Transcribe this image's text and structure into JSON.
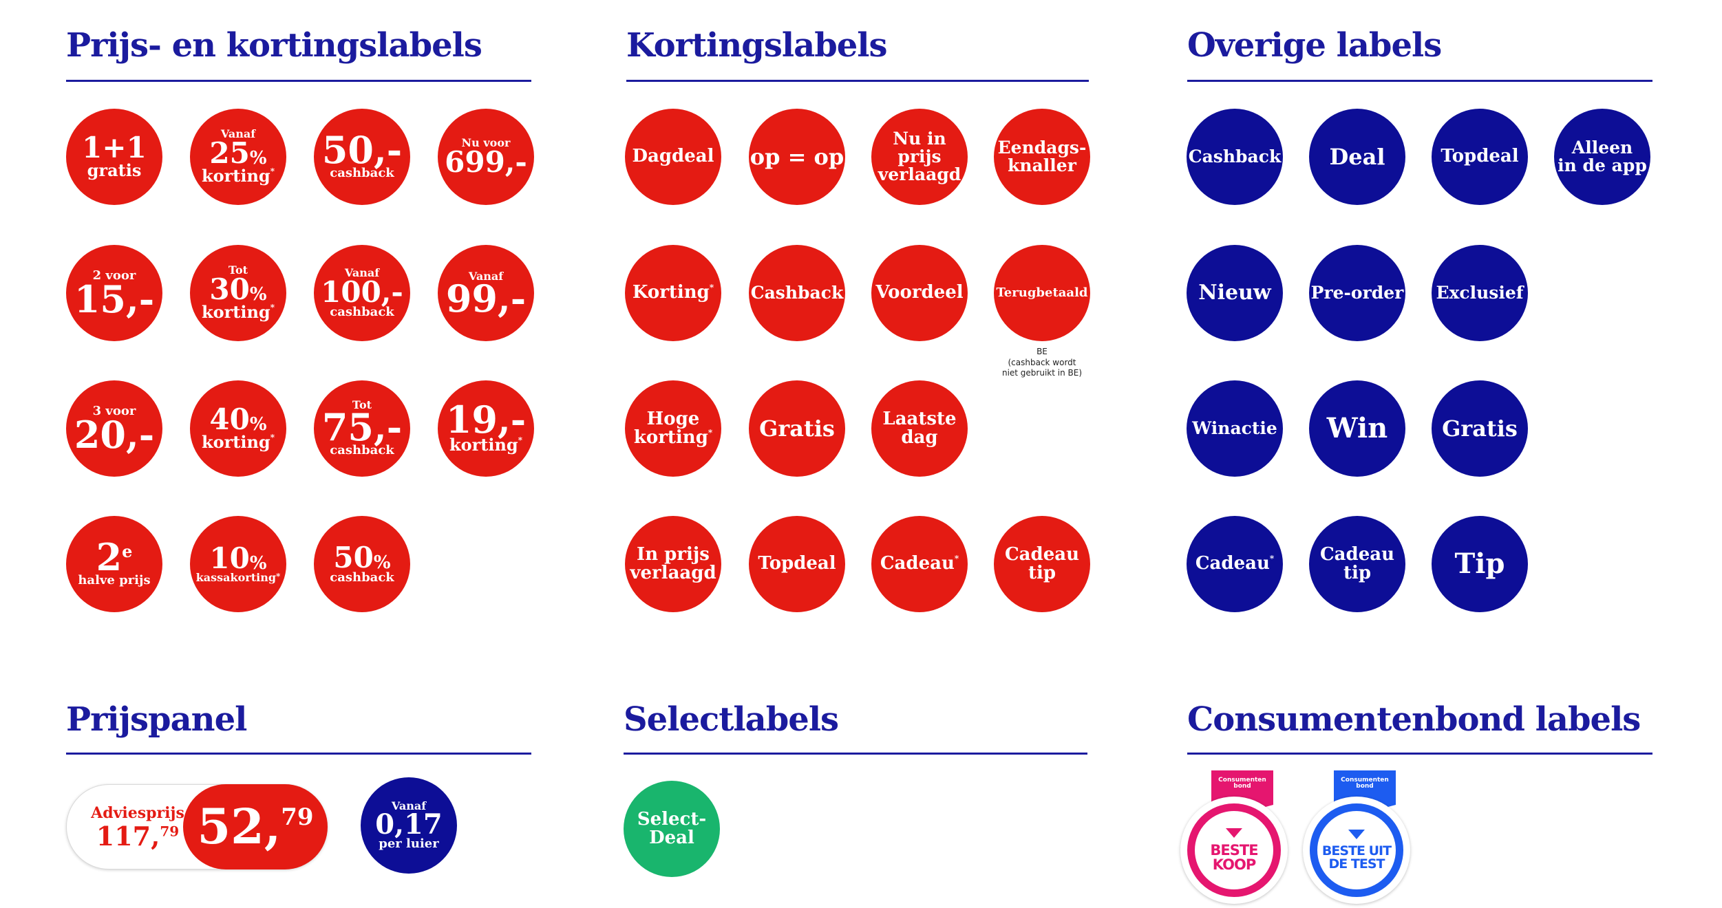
{
  "sections": {
    "prijs": "Prijs- en kortingslabels",
    "korting": "Kortingslabels",
    "overige": "Overige labels",
    "prijspanel": "Prijspanel",
    "select": "Selectlabels",
    "consumentenbond": "Consumentenbond labels"
  },
  "prijs_labels": {
    "l1": {
      "big": "1+1",
      "small": "gratis"
    },
    "l2": {
      "top": "Vanaf",
      "num": "25",
      "pct": "%",
      "bottom": "korting"
    },
    "l3": {
      "num": "50,-",
      "bottom": "cashback"
    },
    "l4": {
      "top": "Nu voor",
      "num": "699,-"
    },
    "l5": {
      "top": "2 voor",
      "num": "15,-"
    },
    "l6": {
      "top": "Tot",
      "num": "30",
      "pct": "%",
      "bottom": "korting"
    },
    "l7": {
      "top": "Vanaf",
      "num": "100,-",
      "bottom": "cashback"
    },
    "l8": {
      "top": "Vanaf",
      "num": "99,-"
    },
    "l9": {
      "top": "3 voor",
      "num": "20,-"
    },
    "l10": {
      "num": "40",
      "pct": "%",
      "bottom": "korting"
    },
    "l11": {
      "top": "Tot",
      "num": "75,-",
      "bottom": "cashback"
    },
    "l12": {
      "num": "19,-",
      "bottom": "korting"
    },
    "l13": {
      "num": "2",
      "sup": "e",
      "bottom": "halve prijs"
    },
    "l14": {
      "num": "10",
      "pct": "%",
      "bottom": "kassakorting"
    },
    "l15": {
      "num": "50",
      "pct": "%",
      "bottom": "cashback"
    }
  },
  "korting_labels": {
    "k1": "Dagdeal",
    "k2": "op = op",
    "k3": [
      "Nu in prijs",
      "verlaagd"
    ],
    "k4": [
      "Eendags-",
      "knaller"
    ],
    "k5": "Korting",
    "k6": "Cashback",
    "k7": "Voordeel",
    "k8": "Terugbetaald",
    "k8_note": [
      "BE",
      "(cashback wordt",
      "niet gebruikt in BE)"
    ],
    "k9": [
      "Hoge",
      "korting"
    ],
    "k10": "Gratis",
    "k11": [
      "Laatste",
      "dag"
    ],
    "k12": [
      "In prijs",
      "verlaagd"
    ],
    "k13": "Topdeal",
    "k14": "Cadeau",
    "k15": [
      "Cadeau",
      "tip"
    ]
  },
  "overige_labels": {
    "o1": "Cashback",
    "o2": "Deal",
    "o3": "Topdeal",
    "o4": [
      "Alleen",
      "in de app"
    ],
    "o5": "Nieuw",
    "o6": "Pre-order",
    "o7": "Exclusief",
    "o8": "Winactie",
    "o9": "Win",
    "o10": "Gratis",
    "o11": "Cadeau",
    "o12": [
      "Cadeau",
      "tip"
    ],
    "o13": "Tip"
  },
  "asterisk": "*",
  "prijspanel": {
    "advies_label": "Adviesprijs",
    "advies_whole": "117,",
    "advies_cents": "79",
    "price_whole": "52,",
    "price_cents": "79",
    "per_top": "Vanaf",
    "per_num": "0,17",
    "per_bottom": "per luier"
  },
  "select": {
    "line1": "Select-",
    "line2": "Deal"
  },
  "consumentenbond": {
    "ribbon": [
      "Consumenten",
      "bond"
    ],
    "beste_koop": [
      "BESTE",
      "KOOP"
    ],
    "beste_test": [
      "BESTE UIT",
      "DE TEST"
    ]
  },
  "colors": {
    "red": "#e41b13",
    "navy": "#0d0e96",
    "title": "#1b1b9e",
    "green": "#19b56d",
    "pink": "#e5166f",
    "blue": "#1d5cf0"
  }
}
